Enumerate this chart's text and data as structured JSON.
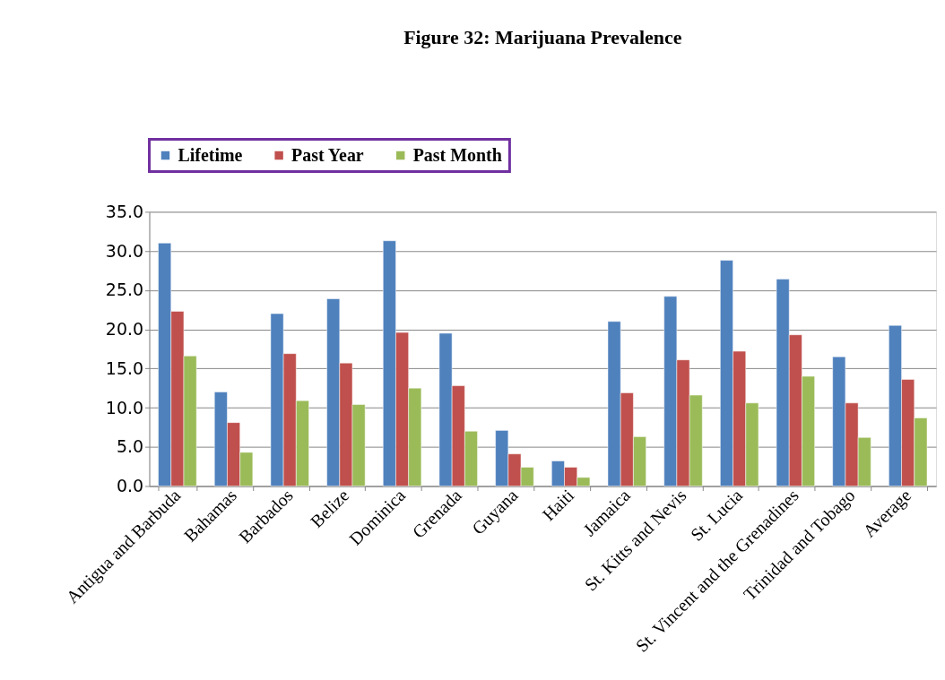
{
  "chart_data": {
    "type": "bar",
    "title": "Figure 32: Marijuana Prevalence",
    "categories": [
      "Antigua and Barbuda",
      "Bahamas",
      "Barbados",
      "Belize",
      "Dominica",
      "Grenada",
      "Guyana",
      "Haiti",
      "Jamaica",
      "St. Kitts and Nevis",
      "St. Lucia",
      "St. Vincent and the Grenadines",
      "Trinidad and Tobago",
      "Average"
    ],
    "series": [
      {
        "name": "Lifetime",
        "color": "#4f81bd",
        "values": [
          31.0,
          12.0,
          22.0,
          23.9,
          31.3,
          19.5,
          7.1,
          3.2,
          21.0,
          24.2,
          28.8,
          26.4,
          16.5,
          20.5
        ]
      },
      {
        "name": "Past Year",
        "color": "#c0504d",
        "values": [
          22.3,
          8.1,
          16.9,
          15.7,
          19.6,
          12.8,
          4.1,
          2.4,
          11.9,
          16.1,
          17.2,
          19.3,
          10.6,
          13.6
        ]
      },
      {
        "name": "Past Month",
        "color": "#9bbb59",
        "values": [
          16.6,
          4.3,
          10.9,
          10.4,
          12.5,
          7.0,
          2.4,
          1.1,
          6.3,
          11.6,
          10.6,
          14.0,
          6.2,
          8.7
        ]
      }
    ],
    "ylim": [
      0,
      35
    ],
    "yticks": [
      {
        "value": 0,
        "label": "0.0"
      },
      {
        "value": 5,
        "label": "5.0"
      },
      {
        "value": 10,
        "label": "10.0"
      },
      {
        "value": 15,
        "label": "15.0"
      },
      {
        "value": 20,
        "label": "20.0"
      },
      {
        "value": 25,
        "label": "25.0"
      },
      {
        "value": 30,
        "label": "30.0"
      },
      {
        "value": 35,
        "label": "35.0"
      }
    ],
    "grid": "y",
    "legend": "top"
  }
}
